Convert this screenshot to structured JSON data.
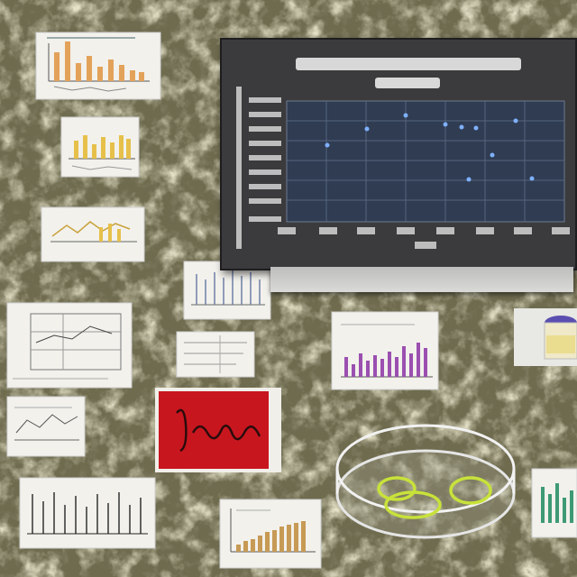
{
  "palette": {
    "background": "#6f6b4f",
    "paper": "#f2f1ec",
    "monitor_screen": "#3b3b3d",
    "plot_area": "#2f3c52",
    "data_point": "#7fb0ff",
    "orange_bars": "#e3a25a",
    "yellow_bars": "#e6c04a",
    "purple_bars": "#9b4fb0",
    "brown_bars": "#c79a55",
    "green_bars": "#3e9a74",
    "red_card": "#c8161f",
    "handwriting": "#2a0c0c",
    "ring": "#c8e23a"
  },
  "icons": [
    "scatter-plot",
    "bar-chart",
    "line-chart",
    "petri-dish",
    "specimen-jar",
    "handwritten-note"
  ]
}
